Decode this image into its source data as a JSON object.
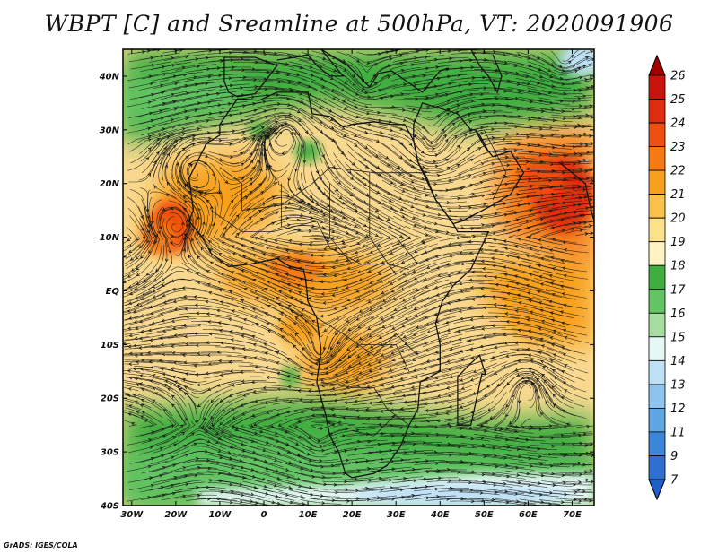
{
  "title": "WBPT [C] and Sreamline at 500hPa, VT: 2020091906",
  "credit": "GrADS: IGES/COLA",
  "chart_data": {
    "type": "heatmap",
    "variable": "Wet-bulb potential temperature (WBPT) with streamlines",
    "level": "500hPa",
    "valid_time": "2020091906",
    "units": "C",
    "lon_range": [
      -32,
      75
    ],
    "lat_range": [
      -40,
      45
    ],
    "x_ticks": [
      {
        "value": -30,
        "label": "30W"
      },
      {
        "value": -20,
        "label": "20W"
      },
      {
        "value": -10,
        "label": "10W"
      },
      {
        "value": 0,
        "label": "0"
      },
      {
        "value": 10,
        "label": "10E"
      },
      {
        "value": 20,
        "label": "20E"
      },
      {
        "value": 30,
        "label": "30E"
      },
      {
        "value": 40,
        "label": "40E"
      },
      {
        "value": 50,
        "label": "50E"
      },
      {
        "value": 60,
        "label": "60E"
      },
      {
        "value": 70,
        "label": "70E"
      }
    ],
    "y_ticks": [
      {
        "value": 40,
        "label": "40N"
      },
      {
        "value": 30,
        "label": "30N"
      },
      {
        "value": 20,
        "label": "20N"
      },
      {
        "value": 10,
        "label": "10N"
      },
      {
        "value": 0,
        "label": "EQ"
      },
      {
        "value": -10,
        "label": "10S"
      },
      {
        "value": -20,
        "label": "20S"
      },
      {
        "value": -30,
        "label": "30S"
      },
      {
        "value": -40,
        "label": "40S"
      }
    ],
    "colorbar": {
      "labels": [
        "26",
        "25",
        "24",
        "23",
        "22",
        "21",
        "20",
        "19",
        "18",
        "17",
        "16",
        "15",
        "14",
        "13",
        "12",
        "11",
        "9",
        "7"
      ],
      "colors": [
        "#a30000",
        "#c8140a",
        "#e02d0f",
        "#ef5010",
        "#f57a14",
        "#f8a01e",
        "#fbc24b",
        "#fde28a",
        "#fff3c4",
        "#3fae3f",
        "#63c463",
        "#a6dea0",
        "#e6f8f6",
        "#bfe1f6",
        "#8fc4ee",
        "#5ea6e4",
        "#3b86da",
        "#2f6fd2",
        "#1e5fc8"
      ]
    },
    "regions": [
      {
        "name": "northern green band",
        "value": 17,
        "lon": -15,
        "lat": 37
      },
      {
        "name": "north atlantic cold pool",
        "value": 13,
        "lon": 72,
        "lat": 43
      },
      {
        "name": "sahara warm core",
        "value": 20,
        "lon": 5,
        "lat": 25
      },
      {
        "name": "west african warm max",
        "value": 23,
        "lon": -21,
        "lat": 11
      },
      {
        "name": "arabian sea / india warm max",
        "value": 24,
        "lon": 68,
        "lat": 17
      },
      {
        "name": "equatorial congo warm",
        "value": 22,
        "lon": 10,
        "lat": 2
      },
      {
        "name": "southern africa warm",
        "value": 21,
        "lon": 18,
        "lat": -12
      },
      {
        "name": "southern green band",
        "value": 17,
        "lon": 20,
        "lat": -28
      },
      {
        "name": "southern ocean cool band",
        "value": 14,
        "lon": 40,
        "lat": -38
      }
    ]
  }
}
